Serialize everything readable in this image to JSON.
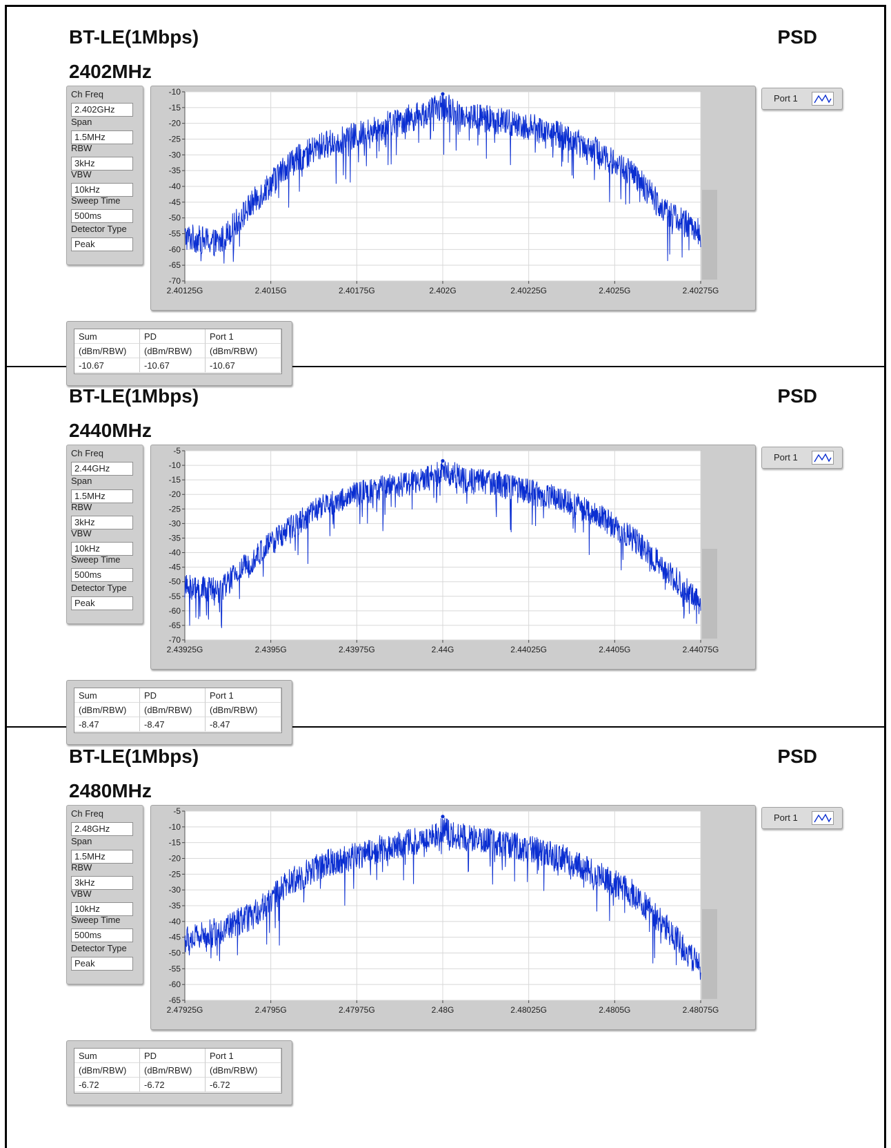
{
  "panels": [
    {
      "title": "BT-LE(1Mbps)",
      "freq_label": "2402MHz",
      "psd_label": "PSD",
      "params": {
        "ch_freq_label": "Ch Freq",
        "ch_freq": "2.402GHz",
        "span_label": "Span",
        "span": "1.5MHz",
        "rbw_label": "RBW",
        "rbw": "3kHz",
        "vbw_label": "VBW",
        "vbw": "10kHz",
        "sweep_label": "Sweep Time",
        "sweep": "500ms",
        "detector_label": "Detector Type",
        "detector": "Peak"
      },
      "legend": "Port 1",
      "table": {
        "headers": [
          "Sum",
          "PD",
          "Port 1"
        ],
        "units": [
          "(dBm/RBW)",
          "(dBm/RBW)",
          "(dBm/RBW)"
        ],
        "values": [
          "-10.67",
          "-10.67",
          "-10.67"
        ]
      }
    },
    {
      "title": "BT-LE(1Mbps)",
      "freq_label": "2440MHz",
      "psd_label": "PSD",
      "params": {
        "ch_freq_label": "Ch Freq",
        "ch_freq": "2.44GHz",
        "span_label": "Span",
        "span": "1.5MHz",
        "rbw_label": "RBW",
        "rbw": "3kHz",
        "vbw_label": "VBW",
        "vbw": "10kHz",
        "sweep_label": "Sweep Time",
        "sweep": "500ms",
        "detector_label": "Detector Type",
        "detector": "Peak"
      },
      "legend": "Port 1",
      "table": {
        "headers": [
          "Sum",
          "PD",
          "Port 1"
        ],
        "units": [
          "(dBm/RBW)",
          "(dBm/RBW)",
          "(dBm/RBW)"
        ],
        "values": [
          "-8.47",
          "-8.47",
          "-8.47"
        ]
      }
    },
    {
      "title": "BT-LE(1Mbps)",
      "freq_label": "2480MHz",
      "psd_label": "PSD",
      "params": {
        "ch_freq_label": "Ch Freq",
        "ch_freq": "2.48GHz",
        "span_label": "Span",
        "span": "1.5MHz",
        "rbw_label": "RBW",
        "rbw": "3kHz",
        "vbw_label": "VBW",
        "vbw": "10kHz",
        "sweep_label": "Sweep Time",
        "sweep": "500ms",
        "detector_label": "Detector Type",
        "detector": "Peak"
      },
      "legend": "Port 1",
      "table": {
        "headers": [
          "Sum",
          "PD",
          "Port 1"
        ],
        "units": [
          "(dBm/RBW)",
          "(dBm/RBW)",
          "(dBm/RBW)"
        ],
        "values": [
          "-6.72",
          "-6.72",
          "-6.72"
        ]
      }
    }
  ],
  "colors": {
    "trace": "#0a2ed1",
    "grid": "#d8d8d8",
    "frame": "#cdcdcd",
    "plot_bg": "#ffffff"
  },
  "chart_data": [
    {
      "type": "line",
      "grid": true,
      "x_ticks": [
        "2.40125G",
        "2.4015G",
        "2.40175G",
        "2.402G",
        "2.40225G",
        "2.4025G",
        "2.40275G"
      ],
      "y_ticks": [
        -10,
        -15,
        -20,
        -25,
        -30,
        -35,
        -40,
        -45,
        -50,
        -55,
        -60,
        -65,
        -70
      ],
      "xlim_ghz": [
        2.40125,
        2.40275
      ],
      "ylim": [
        -70,
        -10
      ],
      "series": [
        {
          "name": "Port 1",
          "x_ghz": [
            2.40125,
            2.40135,
            2.40145,
            2.40155,
            2.40165,
            2.40175,
            2.40185,
            2.40195,
            2.402,
            2.40205,
            2.40215,
            2.40225,
            2.40235,
            2.40245,
            2.40255,
            2.40265,
            2.40275
          ],
          "y_db": [
            -56,
            -58,
            -45,
            -33,
            -27,
            -24,
            -20,
            -17,
            -14.5,
            -17,
            -19,
            -21,
            -24,
            -29,
            -36,
            -48,
            -55
          ]
        }
      ],
      "peak_marker": {
        "x_ghz": 2.402,
        "y_db": -10.67
      }
    },
    {
      "type": "line",
      "grid": true,
      "x_ticks": [
        "2.43925G",
        "2.4395G",
        "2.43975G",
        "2.44G",
        "2.44025G",
        "2.4405G",
        "2.44075G"
      ],
      "y_ticks": [
        -5,
        -10,
        -15,
        -20,
        -25,
        -30,
        -35,
        -40,
        -45,
        -50,
        -55,
        -60,
        -65,
        -70
      ],
      "xlim_ghz": [
        2.43925,
        2.44075
      ],
      "ylim": [
        -70,
        -5
      ],
      "series": [
        {
          "name": "Port 1",
          "x_ghz": [
            2.43925,
            2.43935,
            2.43945,
            2.43955,
            2.43965,
            2.43975,
            2.43985,
            2.43995,
            2.44,
            2.44005,
            2.44015,
            2.44025,
            2.44035,
            2.44045,
            2.44055,
            2.44065,
            2.44075
          ],
          "y_db": [
            -52,
            -53,
            -42,
            -32,
            -24,
            -20,
            -17,
            -15,
            -12,
            -14,
            -16,
            -19,
            -22,
            -27,
            -35,
            -46,
            -58
          ]
        }
      ],
      "peak_marker": {
        "x_ghz": 2.44,
        "y_db": -8.47
      }
    },
    {
      "type": "line",
      "grid": true,
      "x_ticks": [
        "2.47925G",
        "2.4795G",
        "2.47975G",
        "2.48G",
        "2.48025G",
        "2.4805G",
        "2.48075G"
      ],
      "y_ticks": [
        -5,
        -10,
        -15,
        -20,
        -25,
        -30,
        -35,
        -40,
        -45,
        -50,
        -55,
        -60,
        -65
      ],
      "xlim_ghz": [
        2.47925,
        2.48075
      ],
      "ylim": [
        -65,
        -5
      ],
      "series": [
        {
          "name": "Port 1",
          "x_ghz": [
            2.47925,
            2.47935,
            2.47945,
            2.47955,
            2.47965,
            2.47975,
            2.47985,
            2.47995,
            2.48,
            2.48005,
            2.48015,
            2.48025,
            2.48035,
            2.48045,
            2.48055,
            2.48065,
            2.48075
          ],
          "y_db": [
            -46,
            -43,
            -38,
            -28,
            -22,
            -19,
            -16,
            -14,
            -11,
            -13,
            -15,
            -17,
            -20,
            -25,
            -31,
            -42,
            -55
          ]
        }
      ],
      "peak_marker": {
        "x_ghz": 2.48,
        "y_db": -6.72
      }
    }
  ]
}
